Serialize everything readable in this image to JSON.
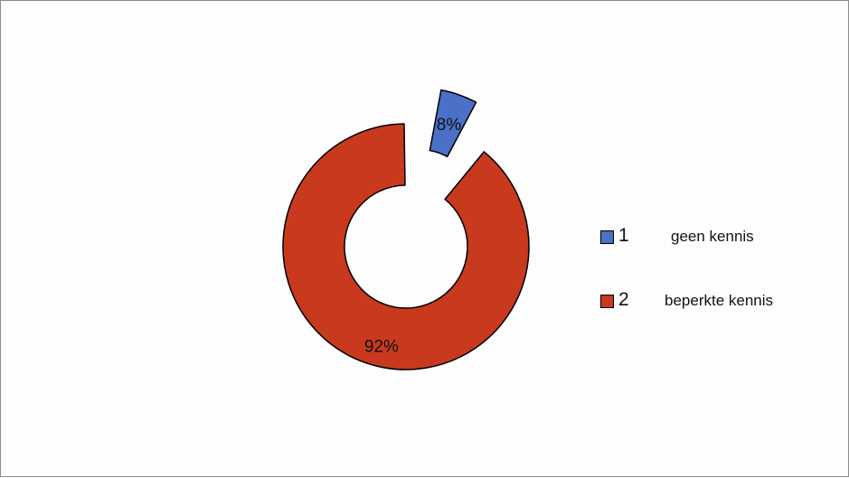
{
  "chart_data": {
    "type": "pie",
    "style": "exploded-donut",
    "categories": [
      "1",
      "2"
    ],
    "series": [
      {
        "values": [
          8,
          92
        ]
      }
    ],
    "data_labels": [
      "8%",
      "92%"
    ],
    "legend": {
      "position": "right",
      "entries": [
        {
          "number": "1",
          "text": "geen kennis",
          "color": "#4a70c8"
        },
        {
          "number": "2",
          "text": "beperkte kennis",
          "color": "#c8391e"
        }
      ]
    },
    "colors": [
      "#4a70c8",
      "#c8391e"
    ],
    "exploded_slice": "1"
  }
}
